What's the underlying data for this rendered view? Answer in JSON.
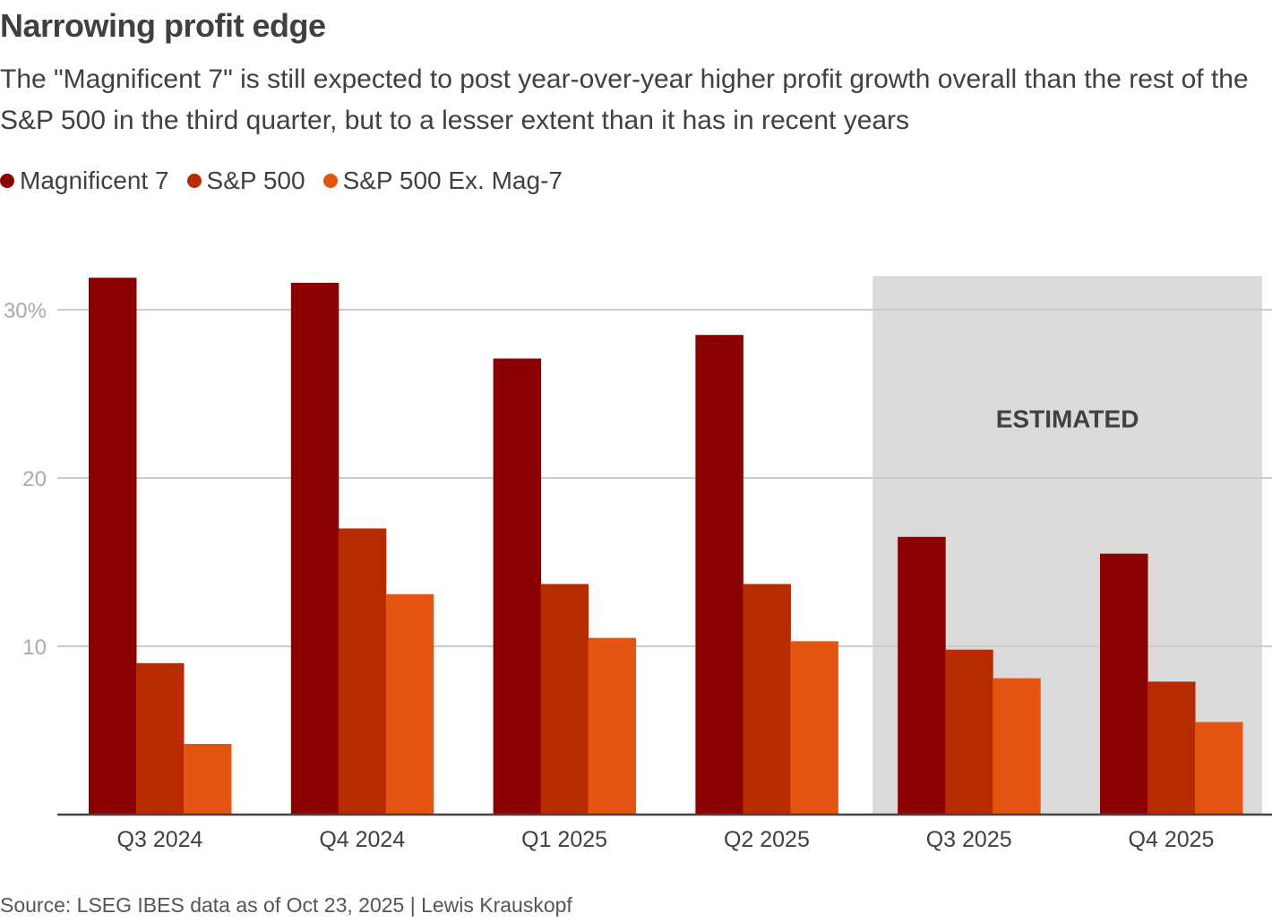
{
  "title": "Narrowing profit edge",
  "subtitle": "The \"Magnificent 7\" is still expected to post year-over-year higher profit growth overall than the rest of the S&P 500 in the third quarter, but to a lesser extent than it has in recent years",
  "source": "Source: LSEG IBES data as of Oct 23, 2025 | Lewis Krauskopf",
  "legend": [
    {
      "label": "Magnificent 7",
      "color": "#8b0000"
    },
    {
      "label": "S&P 500",
      "color": "#b82a00"
    },
    {
      "label": "S&P 500 Ex. Mag-7",
      "color": "#e35510"
    }
  ],
  "chart_data": {
    "type": "bar",
    "title": "Narrowing profit edge",
    "xlabel": "",
    "ylabel": "",
    "categories": [
      "Q3 2024",
      "Q4 2024",
      "Q1 2025",
      "Q2 2025",
      "Q3 2025",
      "Q4 2025"
    ],
    "series": [
      {
        "name": "Magnificent 7",
        "color": "#8b0000",
        "values": [
          31.9,
          31.6,
          27.1,
          28.5,
          16.5,
          15.5
        ]
      },
      {
        "name": "S&P 500",
        "color": "#b82a00",
        "values": [
          9.0,
          17.0,
          13.7,
          13.7,
          9.8,
          7.9
        ]
      },
      {
        "name": "S&P 500 Ex. Mag-7",
        "color": "#e35510",
        "values": [
          4.2,
          13.1,
          10.5,
          10.3,
          8.1,
          5.5
        ]
      }
    ],
    "ylim": [
      0,
      32
    ],
    "yticks": [
      {
        "value": 10,
        "label": "10"
      },
      {
        "value": 20,
        "label": "20"
      },
      {
        "value": 30,
        "label": "30%"
      }
    ],
    "grid": true,
    "legend_position": "top-left",
    "annotation": {
      "label": "ESTIMATED",
      "categories": [
        "Q3 2025",
        "Q4 2025"
      ],
      "fill": "#dadada"
    }
  }
}
